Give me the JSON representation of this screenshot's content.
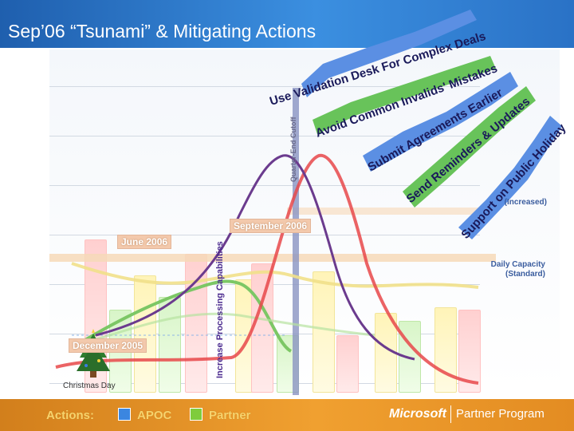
{
  "title": "Sep’06 “Tsunami” & Mitigating Actions",
  "months": {
    "june": "June 2006",
    "september": "September 2006",
    "december": "December 2005"
  },
  "axis": {
    "capacity_label": "Increase Processing Capabilities",
    "cutoff_label": "Quarter-End Cutoff"
  },
  "capacity": {
    "increased": "(Increased)",
    "standard_line1": "Daily Capacity",
    "standard_line2": "(Standard)"
  },
  "christmas_label": "Christmas Day",
  "arrows": [
    {
      "label": "Use Validation Desk For Complex Deals",
      "color": "#5b8fe3"
    },
    {
      "label": "Avoid Common Invalids' Mistakes",
      "color": "#68c35a"
    },
    {
      "label": "Submit Agreements Earlier",
      "color": "#5b8fe3"
    },
    {
      "label": "Send Reminders & Updates",
      "color": "#68c35a"
    },
    {
      "label": "Support on Public Holiday",
      "color": "#5b8fe3"
    }
  ],
  "legend": {
    "actions": "Actions:",
    "apoc": "APOC",
    "partner": "Partner",
    "apoc_color": "#3b86e0",
    "partner_color": "#7fcc3c"
  },
  "footer": {
    "microsoft": "Microsoft",
    "program": "Partner Program"
  }
}
